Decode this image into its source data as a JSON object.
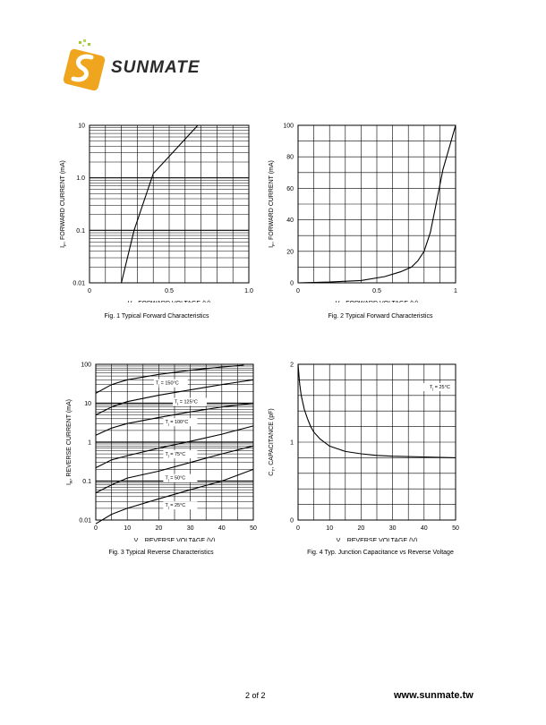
{
  "logo": {
    "brand_text": "SUNMATE",
    "colors": [
      "#f0a51e",
      "#e26a16",
      "#2a2a2a"
    ]
  },
  "footer": {
    "page": "2  of 2",
    "url": "www.sunmate.tw"
  },
  "chart_data": [
    {
      "id": "fig1",
      "type": "line",
      "x_scale": "linear",
      "y_scale": "log",
      "xlim": [
        0,
        1.0
      ],
      "ylim": [
        0.01,
        10
      ],
      "xticks": [
        0,
        0.5,
        1.0
      ],
      "xtick_labels": [
        "0",
        "0.5",
        "1.0"
      ],
      "yticks": [
        0.01,
        0.1,
        1,
        10
      ],
      "ytick_labels": [
        "0.01",
        "0.1",
        "1.0",
        "10"
      ],
      "grid": true,
      "xlabel": {
        "main": "V",
        "sub": "F",
        "rest": ", FORWARD VOLTAGE (V)"
      },
      "ylabel": {
        "main": "I",
        "sub": "F",
        "rest": ", FORWARD CURRENT (mA)"
      },
      "caption": "Fig. 1 Typical Forward Characteristics",
      "series": [
        {
          "x": [
            0.2,
            0.28,
            0.4,
            0.68
          ],
          "y": [
            0.01,
            0.1,
            1.2,
            10
          ]
        }
      ]
    },
    {
      "id": "fig2",
      "type": "line",
      "x_scale": "linear",
      "y_scale": "linear",
      "xlim": [
        0,
        1
      ],
      "ylim": [
        0,
        100
      ],
      "xticks": [
        0,
        0.5,
        1
      ],
      "xtick_labels": [
        "0",
        "0.5",
        "1"
      ],
      "yticks": [
        0,
        20,
        40,
        60,
        80,
        100
      ],
      "ytick_labels": [
        "0",
        "20",
        "40",
        "60",
        "80",
        "100"
      ],
      "grid": true,
      "xlabel": {
        "main": "V",
        "sub": "F",
        "rest": ", FORWARD VOLTAGE (V)"
      },
      "ylabel": {
        "main": "I",
        "sub": "F",
        "rest": ", FORWARD CURRENT (mA)"
      },
      "caption": "Fig. 2 Typical Forward Characteristics",
      "series": [
        {
          "x": [
            0,
            0.2,
            0.4,
            0.55,
            0.65,
            0.72,
            0.76,
            0.8,
            0.84,
            0.88,
            0.92,
            0.96,
            1.0
          ],
          "y": [
            0,
            0.5,
            1.5,
            4,
            7,
            10,
            14,
            20,
            32,
            52,
            72,
            86,
            100
          ]
        }
      ]
    },
    {
      "id": "fig3",
      "type": "line",
      "x_scale": "linear",
      "y_scale": "log",
      "xlim": [
        0,
        50
      ],
      "ylim": [
        0.01,
        100
      ],
      "xticks": [
        0,
        10,
        20,
        30,
        40,
        50
      ],
      "xtick_labels": [
        "0",
        "10",
        "20",
        "30",
        "40",
        "50"
      ],
      "yticks": [
        0.01,
        0.1,
        1,
        10,
        100
      ],
      "ytick_labels": [
        "0.01",
        "0.1",
        "1",
        "10",
        "100"
      ],
      "grid": true,
      "xlabel": {
        "main": "V",
        "sub": "R",
        "rest": ", REVERSE VOLTAGE (V)"
      },
      "ylabel": {
        "main": "I",
        "sub": "R",
        "rest": ", REVERSE CURRENT (mA)"
      },
      "caption": "Fig. 3 Typical Reverse Characteristics",
      "series": [
        {
          "label": {
            "main": "T",
            "sub": "j",
            "rest": " = 150°C"
          },
          "label_at": [
            19,
            30
          ],
          "x": [
            0,
            5,
            10,
            20,
            30,
            40,
            47
          ],
          "y": [
            18,
            30,
            40,
            55,
            70,
            85,
            95
          ]
        },
        {
          "label": {
            "main": "T",
            "sub": "j",
            "rest": " = 125°C"
          },
          "label_at": [
            25,
            10
          ],
          "x": [
            0,
            5,
            10,
            20,
            30,
            40,
            50
          ],
          "y": [
            5,
            8,
            11,
            16,
            22,
            30,
            40
          ]
        },
        {
          "label": {
            "main": "T",
            "sub": "j",
            "rest": " = 100°C"
          },
          "label_at": [
            22,
            3
          ],
          "x": [
            0,
            5,
            10,
            20,
            30,
            40,
            50
          ],
          "y": [
            1.5,
            2.3,
            3,
            4.3,
            6,
            8,
            10
          ]
        },
        {
          "label": {
            "main": "T",
            "sub": "j",
            "rest": " = 75°C"
          },
          "label_at": [
            22,
            0.45
          ],
          "x": [
            0,
            5,
            10,
            20,
            30,
            40,
            50
          ],
          "y": [
            0.22,
            0.35,
            0.45,
            0.7,
            1.05,
            1.6,
            2.6
          ]
        },
        {
          "label": {
            "main": "T",
            "sub": "j",
            "rest": " = 50°C"
          },
          "label_at": [
            22,
            0.11
          ],
          "x": [
            0,
            5,
            10,
            20,
            30,
            40,
            50
          ],
          "y": [
            0.05,
            0.08,
            0.12,
            0.18,
            0.3,
            0.5,
            0.8
          ]
        },
        {
          "label": {
            "main": "T",
            "sub": "j",
            "rest": " = 25°C"
          },
          "label_at": [
            22,
            0.022
          ],
          "x": [
            0,
            5,
            10,
            20,
            30,
            40,
            50
          ],
          "y": [
            0.008,
            0.014,
            0.02,
            0.035,
            0.06,
            0.1,
            0.2
          ]
        }
      ]
    },
    {
      "id": "fig4",
      "type": "line",
      "x_scale": "linear",
      "y_scale": "linear",
      "xlim": [
        0,
        50
      ],
      "ylim": [
        0,
        2
      ],
      "xticks": [
        0,
        10,
        20,
        30,
        40,
        50
      ],
      "xtick_labels": [
        "0",
        "10",
        "20",
        "30",
        "40",
        "50"
      ],
      "yticks": [
        0,
        1,
        2
      ],
      "ytick_labels": [
        "0",
        "1",
        "2"
      ],
      "grid": true,
      "xlabel": {
        "main": "V",
        "sub": "R",
        "rest": ", REVERSE VOLTAGE (V)"
      },
      "ylabel": {
        "main": "C",
        "sub": "T",
        "rest": ", CAPACITANCE (pF)"
      },
      "caption": "Fig. 4 Typ. Junction Capacitance vs Reverse Voltage",
      "annotation": {
        "main": "T",
        "sub": "j",
        "rest": " = 25°C",
        "at": [
          45,
          1.69
        ]
      },
      "series": [
        {
          "x": [
            0,
            0.5,
            1,
            2,
            3,
            4,
            5,
            7,
            10,
            15,
            20,
            25,
            30,
            40,
            50
          ],
          "y": [
            2.0,
            1.75,
            1.6,
            1.42,
            1.3,
            1.2,
            1.13,
            1.04,
            0.95,
            0.88,
            0.85,
            0.83,
            0.82,
            0.81,
            0.8
          ]
        }
      ]
    }
  ]
}
